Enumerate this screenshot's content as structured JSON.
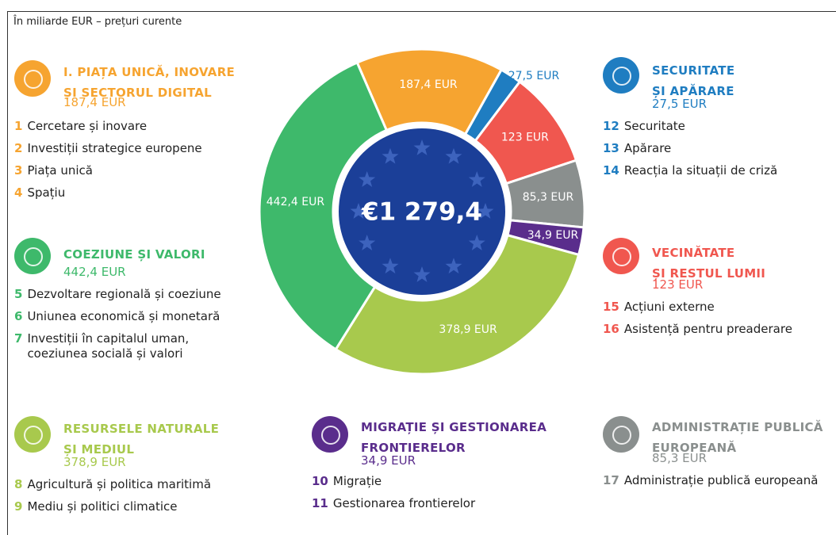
{
  "subtitle": "În miliarde EUR – prețuri curente",
  "chart_data": {
    "type": "donut",
    "center_label": "€1 279,4",
    "values": [
      187.4,
      27.5,
      123,
      85.3,
      34.9,
      378.9,
      442.4
    ],
    "value_labels": [
      "187,4 EUR",
      "27,5 EUR",
      "123 EUR",
      "85,3 EUR",
      "34,9 EUR",
      "378,9 EUR",
      "442,4 EUR"
    ],
    "colors": [
      "#f6a430",
      "#1f7dc1",
      "#f0574f",
      "#8a8f8e",
      "#5a2d8c",
      "#a8c94d",
      "#3eb96b"
    ]
  },
  "sections": [
    {
      "title": "I. PIAȚA UNICĂ, INOVARE\nȘI SECTORUL DIGITAL",
      "amount": "187,4 EUR",
      "color": "#f6a430",
      "items": [
        {
          "num": "1",
          "label": "Cercetare și inovare"
        },
        {
          "num": "2",
          "label": "Investiții strategice europene"
        },
        {
          "num": "3",
          "label": "Piața unică"
        },
        {
          "num": "4",
          "label": "Spațiu"
        }
      ]
    },
    {
      "title": "COEZIUNE ȘI VALORI",
      "amount": "442,4 EUR",
      "color": "#3eb96b",
      "items": [
        {
          "num": "5",
          "label": "Dezvoltare regională și coeziune"
        },
        {
          "num": "6",
          "label": "Uniunea economică și monetară"
        },
        {
          "num": "7",
          "label": "Investiții în capitalul uman,\ncoeziunea socială și valori"
        }
      ]
    },
    {
      "title": "RESURSELE NATURALE\nȘI MEDIUL",
      "amount": "378,9 EUR",
      "color": "#a8c94d",
      "items": [
        {
          "num": "8",
          "label": "Agricultură și politica maritimă"
        },
        {
          "num": "9",
          "label": "Mediu și politici climatice"
        }
      ]
    },
    {
      "title": "MIGRAȚIE ȘI GESTIONAREA\nFRONTIERELOR",
      "amount": "34,9 EUR",
      "color": "#5a2d8c",
      "items": [
        {
          "num": "10",
          "label": "Migrație"
        },
        {
          "num": "11",
          "label": "Gestionarea frontierelor"
        }
      ]
    },
    {
      "title": "ADMINISTRAȚIE PUBLICĂ\nEUROPEANĂ",
      "amount": "85,3 EUR",
      "color": "#8a8f8e",
      "items": [
        {
          "num": "17",
          "label": "Administrație publică europeană"
        }
      ]
    },
    {
      "title": "SECURITATE\nȘI APĂRARE",
      "amount": "27,5 EUR",
      "color": "#1f7dc1",
      "items": [
        {
          "num": "12",
          "label": "Securitate"
        },
        {
          "num": "13",
          "label": "Apărare"
        },
        {
          "num": "14",
          "label": "Reacția la situații de criză"
        }
      ]
    },
    {
      "title": "VECINĂTATE\nȘI RESTUL LUMII",
      "amount": "123 EUR",
      "color": "#f0574f",
      "items": [
        {
          "num": "15",
          "label": "Acțiuni externe"
        },
        {
          "num": "16",
          "label": "Asistență pentru preaderare"
        }
      ]
    }
  ]
}
